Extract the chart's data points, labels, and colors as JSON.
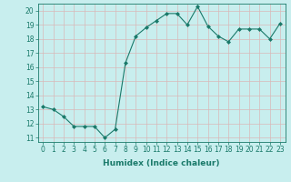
{
  "x": [
    0,
    1,
    2,
    3,
    4,
    5,
    6,
    7,
    8,
    9,
    10,
    11,
    12,
    13,
    14,
    15,
    16,
    17,
    18,
    19,
    20,
    21,
    22,
    23
  ],
  "y": [
    13.2,
    13.0,
    12.5,
    11.8,
    11.8,
    11.8,
    11.0,
    11.6,
    16.3,
    18.2,
    18.8,
    19.3,
    19.8,
    19.8,
    19.0,
    20.3,
    18.9,
    18.2,
    17.8,
    18.7,
    18.7,
    18.7,
    18.0,
    19.1
  ],
  "line_color": "#1a7a6a",
  "marker": "D",
  "marker_size": 2,
  "bg_color": "#c8eeee",
  "grid_color": "#d8b8b8",
  "xlabel": "Humidex (Indice chaleur)",
  "ylim": [
    10.7,
    20.5
  ],
  "xlim": [
    -0.5,
    23.5
  ],
  "yticks": [
    11,
    12,
    13,
    14,
    15,
    16,
    17,
    18,
    19,
    20
  ],
  "xticks": [
    0,
    1,
    2,
    3,
    4,
    5,
    6,
    7,
    8,
    9,
    10,
    11,
    12,
    13,
    14,
    15,
    16,
    17,
    18,
    19,
    20,
    21,
    22,
    23
  ],
  "tick_color": "#1a7a6a",
  "label_color": "#1a7a6a",
  "xlabel_fontsize": 6.5,
  "tick_fontsize": 5.5,
  "line_width": 0.8
}
